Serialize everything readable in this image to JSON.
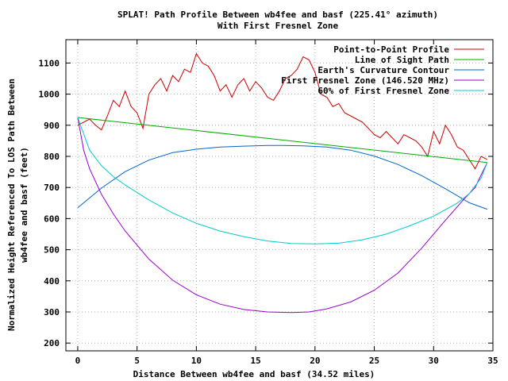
{
  "chart_data": {
    "type": "line",
    "title": "SPLAT! Path Profile Between wb4fee and basf (225.41° azimuth)",
    "subtitle": "With First Fresnel Zone",
    "xlabel": "Distance Between wb4fee and basf (34.52 miles)",
    "ylabel": "Normalized Height Referenced To LOS Path Between",
    "ylabel2": "wb4fee and basf (feet)",
    "xlim": [
      -1,
      35
    ],
    "ylim": [
      175,
      1175
    ],
    "x_ticks": [
      "0",
      "5",
      "10",
      "15",
      "20",
      "25",
      "30",
      "35"
    ],
    "y_ticks": [
      "200",
      "300",
      "400",
      "500",
      "600",
      "700",
      "800",
      "900",
      "1000",
      "1100"
    ],
    "grid": true,
    "legend_position": "top-right",
    "series": [
      {
        "name": "Point-to-Point Profile",
        "color": "#cc0000",
        "x": [
          0,
          0.5,
          1,
          1.5,
          2,
          2.5,
          3,
          3.5,
          4,
          4.5,
          5,
          5.5,
          6,
          6.5,
          7,
          7.5,
          8,
          8.5,
          9,
          9.5,
          10,
          10.5,
          11,
          11.5,
          12,
          12.5,
          13,
          13.5,
          14,
          14.5,
          15,
          15.5,
          16,
          16.5,
          17,
          17.5,
          18,
          18.5,
          19,
          19.5,
          20,
          20.5,
          21,
          21.5,
          22,
          22.5,
          23,
          23.5,
          24,
          24.5,
          25,
          25.5,
          26,
          26.5,
          27,
          27.5,
          28,
          28.5,
          29,
          29.5,
          30,
          30.5,
          31,
          31.5,
          32,
          32.5,
          33,
          33.5,
          34,
          34.52
        ],
        "values": [
          900,
          910,
          920,
          900,
          885,
          930,
          980,
          960,
          1010,
          960,
          940,
          890,
          1000,
          1030,
          1050,
          1010,
          1060,
          1040,
          1080,
          1070,
          1130,
          1100,
          1090,
          1060,
          1010,
          1030,
          990,
          1030,
          1050,
          1010,
          1040,
          1020,
          990,
          980,
          1010,
          1050,
          1060,
          1080,
          1120,
          1110,
          1070,
          1000,
          990,
          960,
          970,
          940,
          930,
          920,
          910,
          890,
          870,
          860,
          880,
          860,
          840,
          870,
          860,
          850,
          830,
          800,
          880,
          840,
          900,
          870,
          830,
          820,
          790,
          760,
          800,
          790
        ]
      },
      {
        "name": "Line of Sight Path",
        "color": "#00aa00",
        "x": [
          0,
          34.52
        ],
        "values": [
          925,
          780
        ]
      },
      {
        "name": "Earth's Curvature Contour",
        "color": "#0066cc",
        "x": [
          0,
          2,
          4,
          6,
          8,
          10,
          12,
          14,
          16,
          17.26,
          19,
          21,
          23,
          25,
          27,
          29,
          31,
          33,
          34.52
        ],
        "values": [
          635,
          698,
          751,
          788,
          812,
          823,
          830,
          833,
          835,
          835,
          834,
          830,
          820,
          801,
          774,
          738,
          696,
          651,
          630
        ]
      },
      {
        "name": "First Fresnel Zone (146.520 MHz)",
        "color": "#9900cc",
        "x": [
          0,
          0.5,
          1,
          2,
          3,
          4,
          6,
          8,
          10,
          12,
          14,
          16,
          18,
          19.5,
          21,
          23,
          25,
          27,
          29,
          31,
          32.5,
          33.5,
          34,
          34.52
        ],
        "values": [
          925,
          820,
          760,
          678,
          615,
          560,
          470,
          402,
          355,
          325,
          308,
          300,
          298,
          300,
          310,
          332,
          370,
          425,
          505,
          595,
          660,
          700,
          740,
          780
        ]
      },
      {
        "name": "60% of First Fresnel Zone",
        "color": "#00cccc",
        "x": [
          0,
          1,
          2,
          3,
          4,
          6,
          8,
          10,
          12,
          14,
          16,
          18,
          20,
          22,
          24,
          26,
          28,
          30,
          32,
          33,
          34,
          34.52
        ],
        "values": [
          925,
          820,
          770,
          735,
          708,
          660,
          618,
          585,
          560,
          542,
          528,
          520,
          519,
          521,
          532,
          550,
          577,
          608,
          650,
          680,
          730,
          780
        ]
      }
    ]
  }
}
